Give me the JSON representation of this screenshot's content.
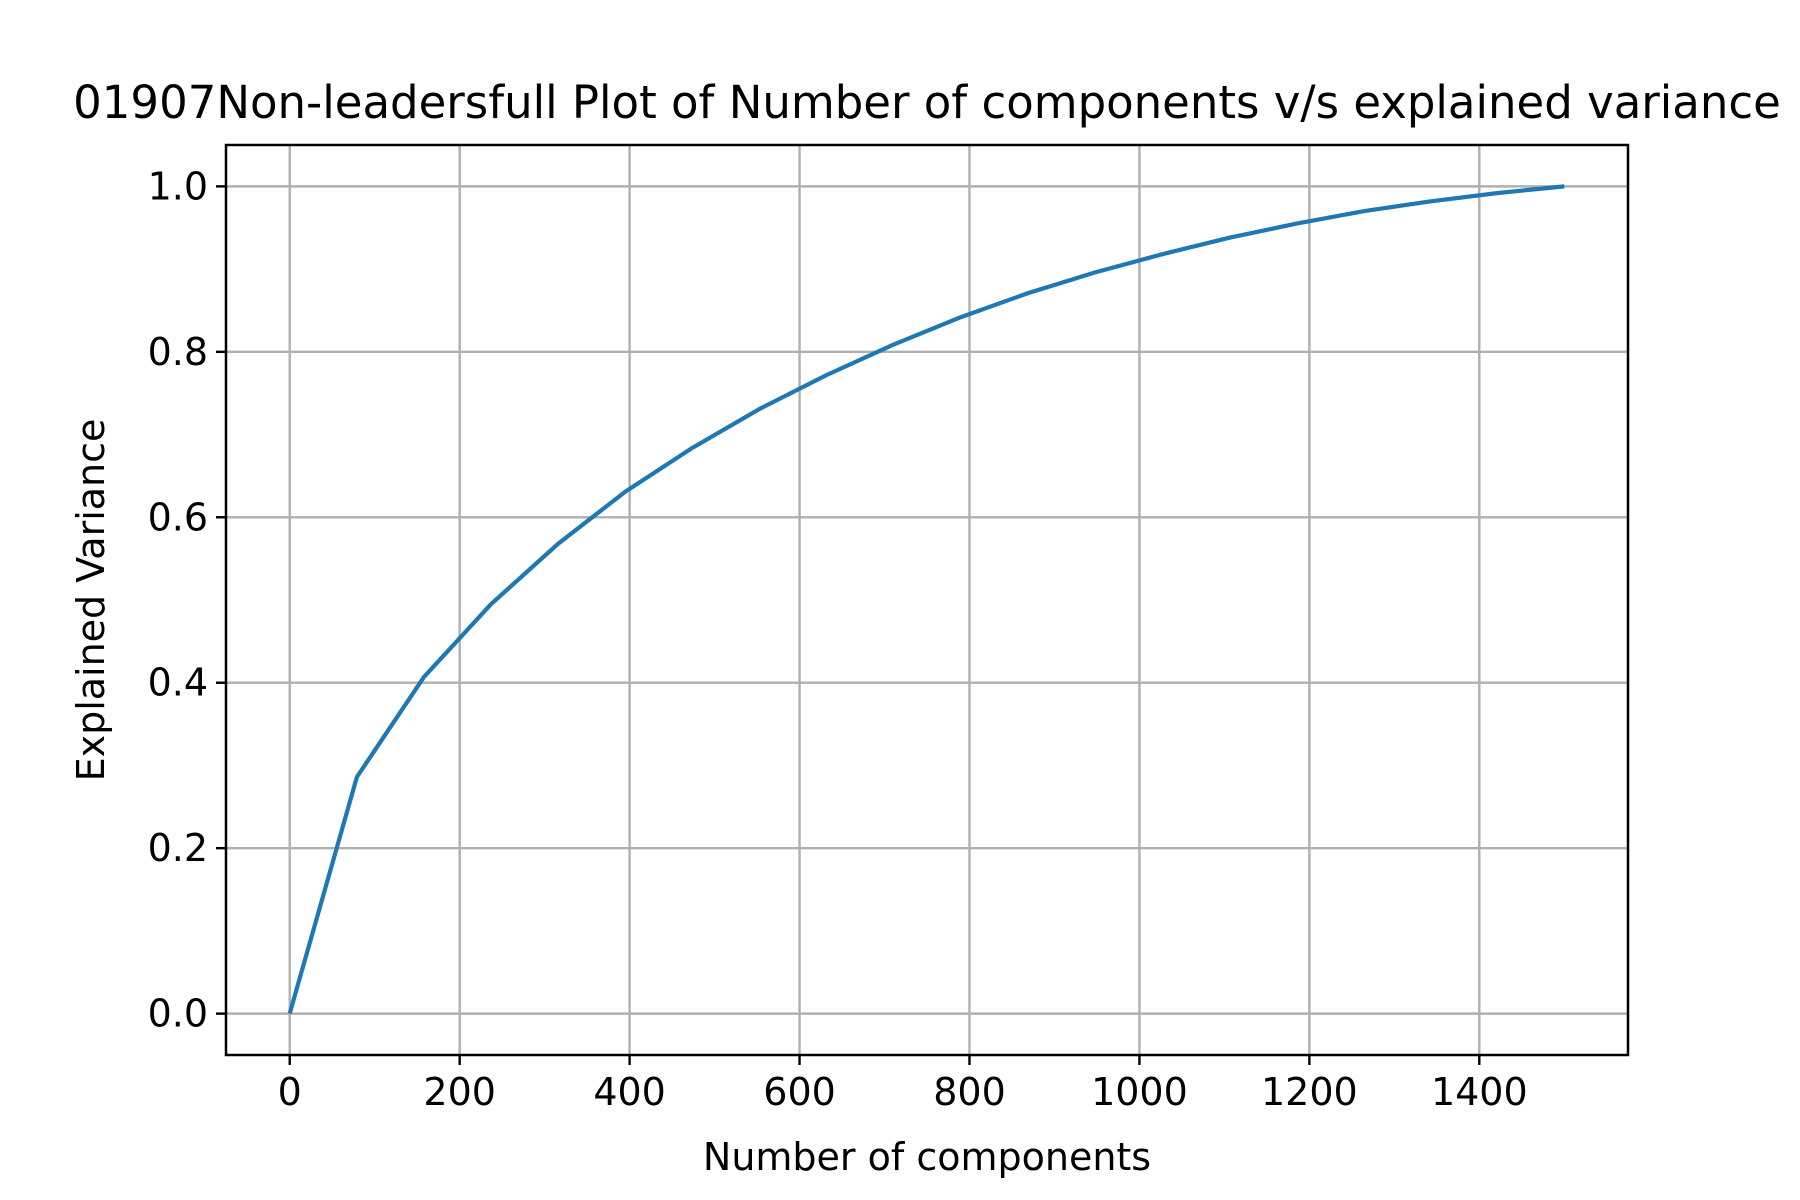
{
  "chart_data": {
    "type": "line",
    "title": "01907Non-leadersfull Plot of Number of components v/s explained variance",
    "xlabel": "Number of components",
    "ylabel": "Explained Variance",
    "xlim": [
      -75,
      1575
    ],
    "ylim": [
      -0.05,
      1.05
    ],
    "xticks": [
      0,
      200,
      400,
      600,
      800,
      1000,
      1200,
      1400
    ],
    "yticks": [
      0.0,
      0.2,
      0.4,
      0.6,
      0.8,
      1.0
    ],
    "xtick_labels": [
      "0",
      "200",
      "400",
      "600",
      "800",
      "1000",
      "1200",
      "1400"
    ],
    "ytick_labels": [
      "0.0",
      "0.2",
      "0.4",
      "0.6",
      "0.8",
      "1.0"
    ],
    "grid": true,
    "series": [
      {
        "color": "#1f77b4",
        "x": [
          0,
          79,
          158,
          237,
          316,
          395,
          474,
          553,
          632,
          711,
          790,
          869,
          948,
          1027,
          1106,
          1185,
          1264,
          1343,
          1422,
          1500
        ],
        "y": [
          0.0,
          0.286,
          0.407,
          0.495,
          0.568,
          0.631,
          0.684,
          0.731,
          0.772,
          0.809,
          0.842,
          0.871,
          0.896,
          0.918,
          0.938,
          0.955,
          0.97,
          0.982,
          0.992,
          1.0
        ]
      }
    ]
  }
}
